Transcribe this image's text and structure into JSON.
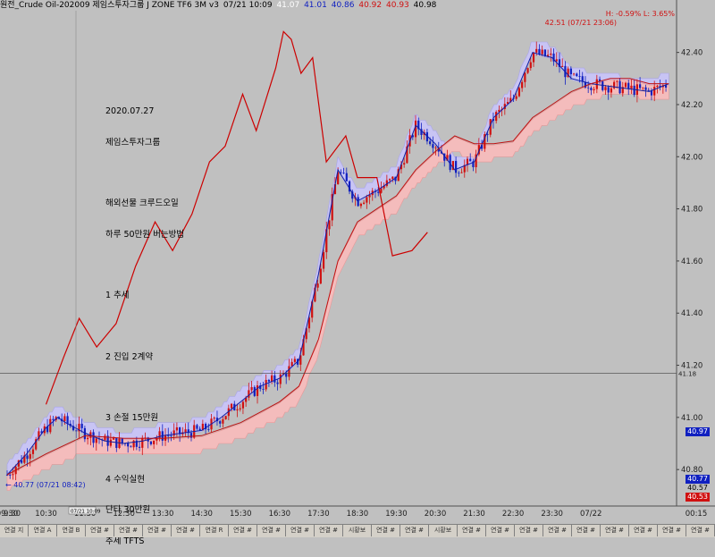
{
  "header": {
    "title": "원전_Crude Oil-202009  제임스투자그룹  J ZONE TF6 3M v3",
    "datetime": "07/21 10:09",
    "open": "41.07",
    "high": "41.01",
    "low": "40.86",
    "close1": "40.92",
    "close2": "40.93",
    "last": "40.98"
  },
  "colors": {
    "background": "#c0c0c0",
    "upper_band": "#c8c4f4",
    "lower_band": "#f4bcbc",
    "candle_up": "#d01010",
    "candle_down": "#1020c0",
    "annotation_line": "#cc0000",
    "blue_avg": "#1020a0",
    "red_avg": "#c01010"
  },
  "note": {
    "date": "2020.07.27",
    "company": "제임스투자그룹",
    "line1": "해외선물 크루드오일",
    "line2": "하루 50만원 버는방법",
    "item1": "1 추세",
    "item2": "2 진입 2계약",
    "item3": "3 손절 15만원",
    "item4": "4 수익실현",
    "item5": "단타 30만원",
    "item6": "추세 TFTS"
  },
  "annotations": {
    "high_label": "H: -0.59%  L: 3.65%",
    "max_price_label": "42.51 (07/21 23:06)",
    "min_price_label": "40.77 (07/21 08:42)",
    "crosshair_price": "41.18",
    "x_marker": "07/21 10:09"
  },
  "price_badges": [
    {
      "value": "40.97",
      "color": "#1020c0"
    },
    {
      "value": "40.77",
      "color": "#1020c0"
    },
    {
      "value": "40.57",
      "color": "#ffffff"
    },
    {
      "value": "40.53",
      "color": "#d01010"
    }
  ],
  "bottom_tabs": [
    "연결 지",
    "연결 A",
    "연결 B",
    "연결 #",
    "연결 #",
    "연결 #",
    "연결 #",
    "연결 R",
    "연결 #",
    "연결 #",
    "연결 #",
    "연결 #",
    "시황보",
    "연결 #",
    "연결 #",
    "시황보",
    "연결 #",
    "연결 #",
    "연결 #",
    "연결 #",
    "연결 #",
    "연결 #",
    "연결 #",
    "연결 #",
    "연결 #"
  ],
  "chart_data": {
    "type": "line",
    "ylim": [
      40.66,
      42.56
    ],
    "yticks": [
      "42.40",
      "42.20",
      "42.00",
      "41.80",
      "41.60",
      "41.40",
      "41.20",
      "41.00",
      "40.80"
    ],
    "xticks": [
      "9:30",
      "09:30",
      "10:30",
      "11:30",
      "12:30",
      "13:30",
      "14:30",
      "15:30",
      "16:30",
      "17:30",
      "18:30",
      "19:30",
      "20:30",
      "21:30",
      "22:30",
      "23:30",
      "07/22",
      "00:15"
    ],
    "xrange": [
      0,
      17.2
    ],
    "series": [
      {
        "x": [
          0,
          0.5,
          1,
          1.3,
          1.5,
          2,
          2.5,
          3,
          3.5,
          4,
          4.5,
          5,
          5.5,
          6,
          6.5,
          7,
          7.5,
          8,
          8.5,
          9,
          9.5,
          10,
          10.5,
          11,
          11.5,
          12,
          12.5,
          13,
          13.5,
          14,
          14.5,
          15,
          15.5,
          16,
          16.5,
          17
        ],
        "y": [
          40.78,
          40.86,
          40.96,
          41.0,
          40.98,
          40.94,
          40.91,
          40.9,
          40.91,
          40.93,
          40.94,
          40.95,
          41.0,
          41.06,
          41.12,
          41.15,
          41.22,
          41.55,
          41.95,
          41.83,
          41.87,
          41.92,
          42.12,
          42.05,
          41.95,
          41.98,
          42.15,
          42.22,
          42.4,
          42.38,
          42.3,
          42.28,
          42.27,
          42.26,
          42.25,
          42.28
        ]
      },
      {
        "x": [
          0,
          1,
          2,
          3,
          4,
          5,
          6,
          7,
          7.5,
          8,
          8.5,
          9,
          9.5,
          10,
          10.5,
          11,
          11.5,
          12,
          12.5,
          13,
          13.5,
          14,
          14.5,
          15,
          15.5,
          16,
          16.5,
          17
        ],
        "y": [
          40.78,
          40.86,
          40.93,
          40.92,
          40.92,
          40.93,
          40.98,
          41.06,
          41.12,
          41.3,
          41.6,
          41.75,
          41.8,
          41.85,
          41.95,
          42.02,
          42.08,
          42.05,
          42.05,
          42.06,
          42.15,
          42.2,
          42.25,
          42.28,
          42.3,
          42.3,
          42.28,
          42.28
        ]
      },
      {
        "x": [
          1.0,
          1.45,
          1.85,
          2.3,
          2.8,
          3.3,
          3.8,
          4.25,
          4.75,
          5.2,
          5.6,
          6.05,
          6.4,
          6.9,
          7.1,
          7.3,
          7.55,
          7.85,
          8.2,
          8.7,
          9.0,
          9.5,
          9.9,
          10.4,
          10.8
        ],
        "y": [
          41.05,
          41.23,
          41.38,
          41.27,
          41.36,
          41.58,
          41.75,
          41.64,
          41.78,
          41.98,
          42.04,
          42.24,
          42.1,
          42.34,
          42.48,
          42.45,
          42.32,
          42.38,
          41.98,
          42.08,
          41.92,
          41.92,
          41.62,
          41.64,
          41.71
        ]
      }
    ]
  }
}
